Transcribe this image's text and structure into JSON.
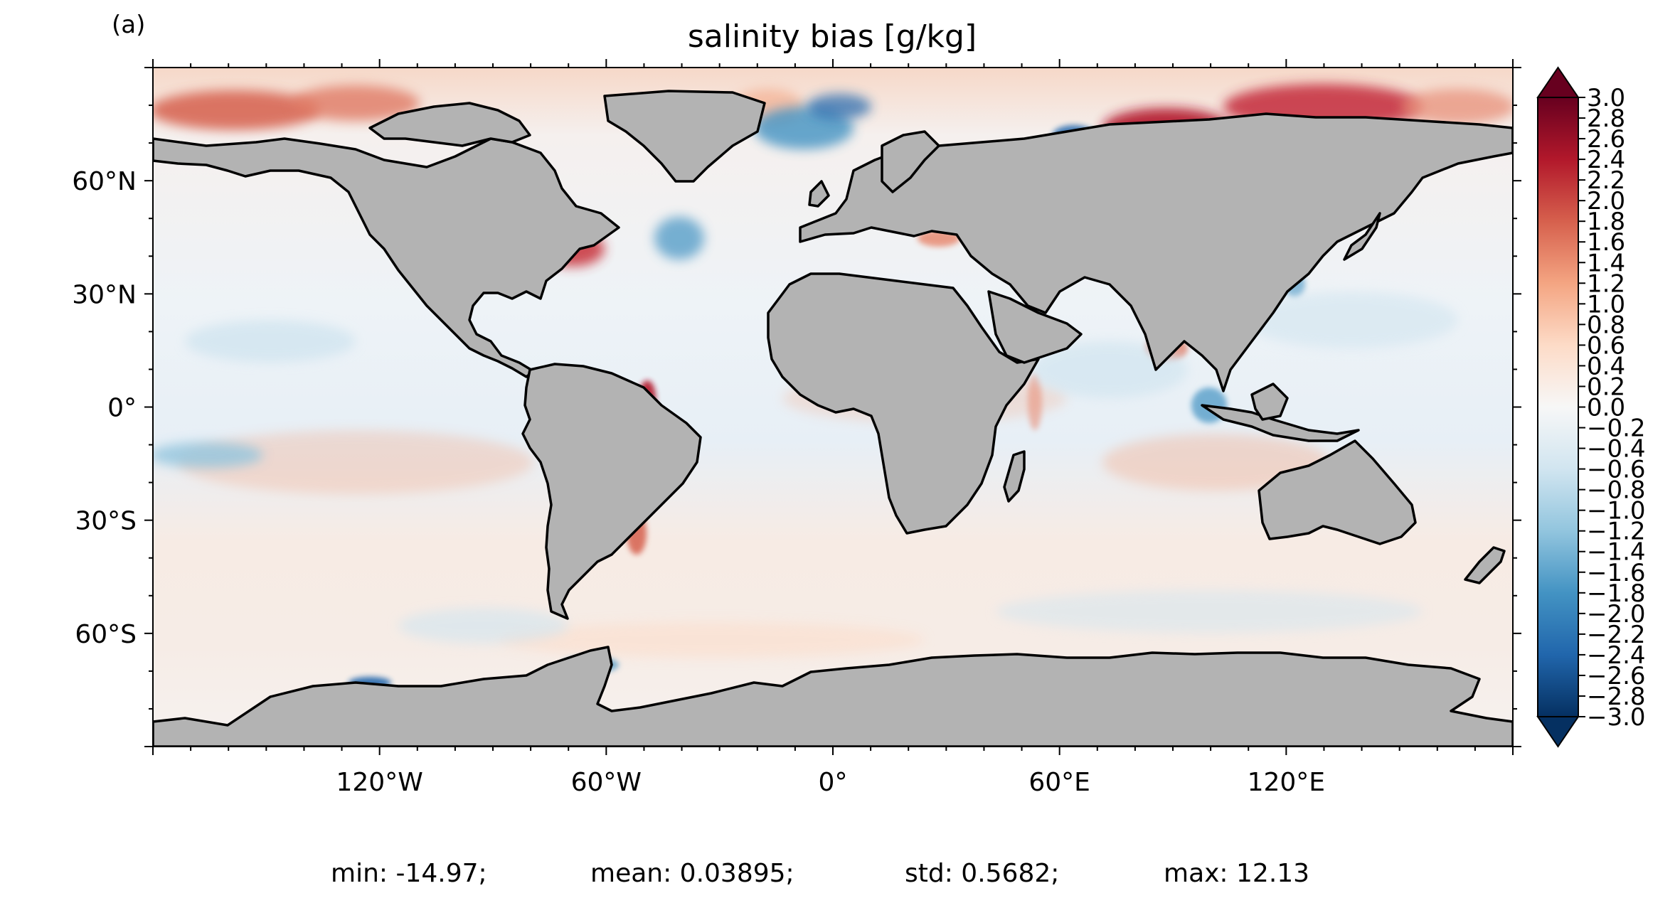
{
  "panel_label": "(a)",
  "title": "salinity bias [g/kg]",
  "map": {
    "projection": "PlateCarree",
    "extent_lon": [
      -180,
      180
    ],
    "extent_lat": [
      -90,
      90
    ],
    "land_color": "#b3b3b3",
    "coastline_color": "#000000",
    "x_ticks": [
      {
        "lon": -120,
        "label": "120°W"
      },
      {
        "lon": -60,
        "label": "60°W"
      },
      {
        "lon": 0,
        "label": "0°"
      },
      {
        "lon": 60,
        "label": "60°E"
      },
      {
        "lon": 120,
        "label": "120°E"
      }
    ],
    "y_ticks": [
      {
        "lat": 60,
        "label": "60°N"
      },
      {
        "lat": 30,
        "label": "30°N"
      },
      {
        "lat": 0,
        "label": "0°"
      },
      {
        "lat": -30,
        "label": "30°S"
      },
      {
        "lat": -60,
        "label": "60°S"
      }
    ]
  },
  "colorbar": {
    "colormap": "RdBu_r",
    "vmin": -3.0,
    "vmax": 3.0,
    "extend": "both",
    "colors": [
      "#053061",
      "#2166ac",
      "#4393c3",
      "#92c5de",
      "#d1e5f0",
      "#f7f7f7",
      "#fddbc7",
      "#f4a582",
      "#d6604d",
      "#b2182b",
      "#67001f"
    ],
    "tick_labels": [
      "−3.0",
      "−2.8",
      "−2.6",
      "−2.4",
      "−2.2",
      "−2.0",
      "−1.8",
      "−1.6",
      "−1.4",
      "−1.2",
      "−1.0",
      "−0.8",
      "−0.6",
      "−0.4",
      "−0.2",
      "0.0",
      "0.2",
      "0.4",
      "0.6",
      "0.8",
      "1.0",
      "1.2",
      "1.4",
      "1.6",
      "1.8",
      "2.0",
      "2.2",
      "2.4",
      "2.6",
      "2.8",
      "3.0"
    ]
  },
  "stats": {
    "min": "min: -14.97;",
    "mean": "mean: 0.03895;",
    "std": "std: 0.5682;",
    "max": "max: 12.13"
  }
}
